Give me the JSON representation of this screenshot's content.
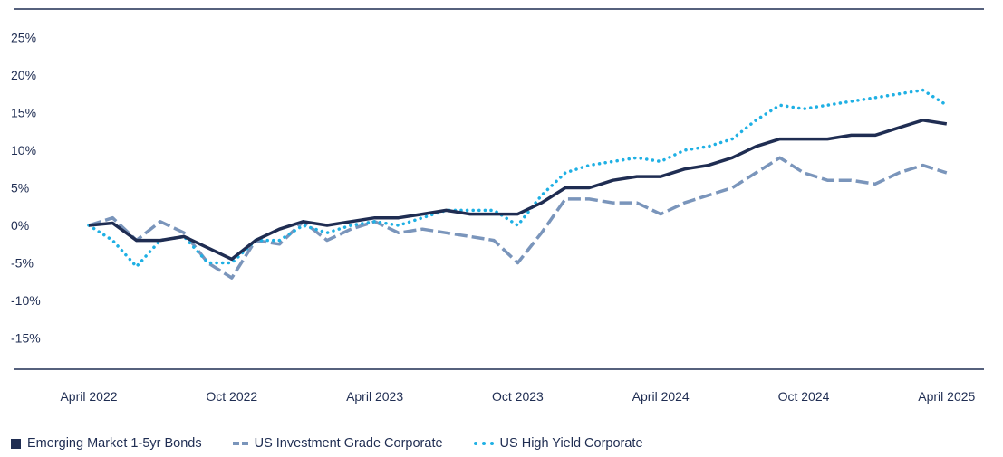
{
  "chart_data": {
    "type": "line",
    "title": "",
    "xlabel": "",
    "ylabel": "",
    "ylim": [
      -15,
      25
    ],
    "yticks": [
      "25%",
      "20%",
      "15%",
      "10%",
      "5%",
      "0%",
      "-5%",
      "-10%",
      "-15%"
    ],
    "ytick_values": [
      25,
      20,
      15,
      10,
      5,
      0,
      -5,
      -10,
      -15
    ],
    "xticks": [
      "April 2022",
      "Oct 2022",
      "April 2023",
      "Oct 2023",
      "April 2024",
      "Oct 2024",
      "April 2025"
    ],
    "xtick_months": [
      0,
      6,
      12,
      18,
      24,
      30,
      36
    ],
    "x": [
      "2022-04",
      "2022-05",
      "2022-06",
      "2022-07",
      "2022-08",
      "2022-09",
      "2022-10",
      "2022-11",
      "2022-12",
      "2023-01",
      "2023-02",
      "2023-03",
      "2023-04",
      "2023-05",
      "2023-06",
      "2023-07",
      "2023-08",
      "2023-09",
      "2023-10",
      "2023-11",
      "2023-12",
      "2024-01",
      "2024-02",
      "2024-03",
      "2024-04",
      "2024-05",
      "2024-06",
      "2024-07",
      "2024-08",
      "2024-09",
      "2024-10",
      "2024-11",
      "2024-12",
      "2025-01",
      "2025-02",
      "2025-03",
      "2025-04"
    ],
    "grid": false,
    "legend_position": "bottom-left",
    "series": [
      {
        "name": "Emerging Market 1-5yr Bonds",
        "color": "#1f2d52",
        "style": "solid",
        "values": [
          0,
          0.3,
          -2,
          -2,
          -1.5,
          -3,
          -4.5,
          -2,
          -0.5,
          0.5,
          0,
          0.5,
          1,
          1,
          1.5,
          2,
          1.5,
          1.5,
          1.5,
          3,
          5,
          5,
          6,
          6.5,
          6.5,
          7.5,
          8,
          9,
          10.5,
          11.5,
          11.5,
          11.5,
          12,
          12,
          13,
          14,
          13.5
        ]
      },
      {
        "name": "US Investment Grade Corporate",
        "color": "#7a95bb",
        "style": "dashed",
        "values": [
          0,
          1,
          -2,
          0.5,
          -1,
          -5,
          -7,
          -2,
          -2.5,
          0.5,
          -2,
          -0.5,
          0.5,
          -1,
          -0.5,
          -1,
          -1.5,
          -2,
          -5,
          -1,
          3.5,
          3.5,
          3,
          3,
          1.5,
          3,
          4,
          5,
          7,
          9,
          7,
          6,
          6,
          5.5,
          7,
          8,
          7
        ]
      },
      {
        "name": "US High Yield Corporate",
        "color": "#1fb0e4",
        "style": "dotted",
        "values": [
          0,
          -2,
          -5.5,
          -2,
          -1.5,
          -5,
          -5,
          -2,
          -2,
          0,
          -1,
          0,
          0.5,
          0,
          1,
          2,
          2,
          2,
          0,
          4,
          7,
          8,
          8.5,
          9,
          8.5,
          10,
          10.5,
          11.5,
          14,
          16,
          15.5,
          16,
          16.5,
          17,
          17.5,
          18,
          16
        ]
      }
    ]
  }
}
